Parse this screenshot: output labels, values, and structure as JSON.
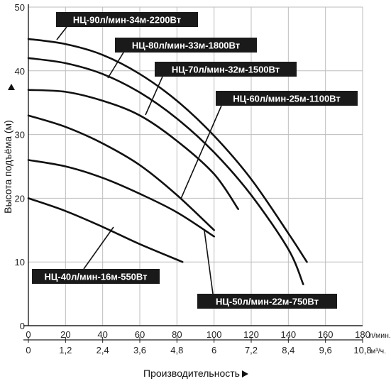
{
  "chart_data": {
    "type": "line",
    "xlabel": "Производительность",
    "ylabel": "Высота подъёма (м)",
    "x_primary": {
      "unit": "л/мин.",
      "ticks": [
        "0",
        "20",
        "40",
        "60",
        "80",
        "100",
        "120",
        "140",
        "160",
        "180"
      ],
      "range": [
        0,
        180
      ]
    },
    "x_secondary": {
      "unit": "м³/ч.",
      "ticks": [
        "0",
        "1,2",
        "2,4",
        "3,6",
        "4,8",
        "6",
        "7,2",
        "8,4",
        "9,6",
        "10,8"
      ],
      "range": [
        0,
        10.8
      ]
    },
    "y_axis": {
      "ticks": [
        "0",
        "10",
        "20",
        "30",
        "40",
        "50"
      ],
      "range": [
        0,
        50
      ]
    },
    "grid": true,
    "series": [
      {
        "name": "НЦ-90л/мин-34м-2200Вт",
        "x": [
          0,
          20,
          40,
          60,
          80,
          100,
          120,
          140,
          150
        ],
        "y": [
          45,
          44.2,
          42.5,
          39.5,
          35.3,
          29.8,
          23,
          14.5,
          10
        ]
      },
      {
        "name": "НЦ-80л/мин-33м-1800Вт",
        "x": [
          0,
          20,
          40,
          60,
          80,
          100,
          120,
          140,
          148
        ],
        "y": [
          42,
          41.2,
          39.5,
          36.6,
          32.5,
          27.2,
          20.5,
          12,
          6.5
        ]
      },
      {
        "name": "НЦ-70л/мин-32м-1500Вт",
        "x": [
          0,
          20,
          40,
          60,
          80,
          100,
          113
        ],
        "y": [
          37,
          36.7,
          35.3,
          33,
          29,
          23.8,
          18.3
        ]
      },
      {
        "name": "НЦ-60л/мин-25м-1100Вт",
        "x": [
          0,
          20,
          40,
          60,
          80,
          100
        ],
        "y": [
          33,
          31.2,
          28.6,
          25.2,
          20.5,
          15
        ]
      },
      {
        "name": "НЦ-50л/мин-22м-750Вт",
        "x": [
          0,
          20,
          40,
          60,
          80,
          100
        ],
        "y": [
          26,
          25,
          23.2,
          20.7,
          17.8,
          14
        ]
      },
      {
        "name": "НЦ-40л/мин-16м-550Вт",
        "x": [
          0,
          20,
          40,
          60,
          83
        ],
        "y": [
          20,
          18,
          15.5,
          12.8,
          10
        ]
      }
    ]
  }
}
